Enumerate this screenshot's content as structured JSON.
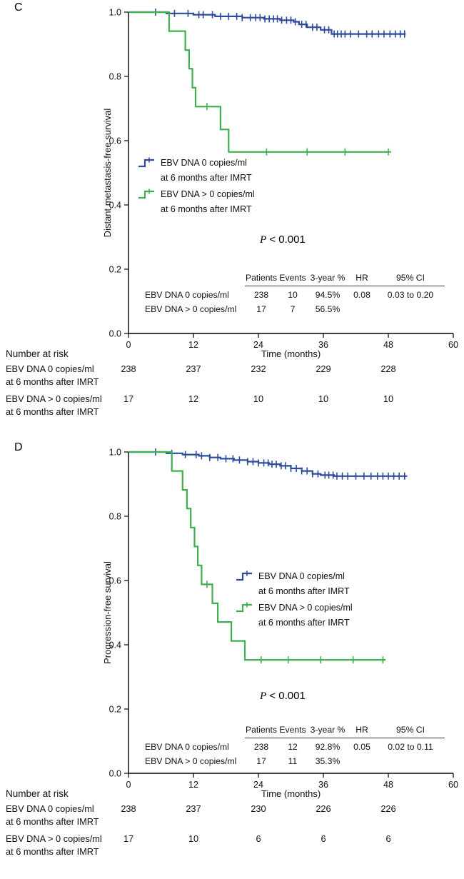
{
  "figure": {
    "panels": [
      {
        "letter": "C",
        "legend": {
          "group1_line1": "EBV DNA 0 copies/ml",
          "group1_line2": "at 6 months after IMRT",
          "group2_line1": "EBV DNA > 0 copies/ml",
          "group2_line2": "at 6 months after IMRT"
        },
        "stats": {
          "headers": {
            "patients": "Patients",
            "events": "Events",
            "three_year": "3-year %",
            "hr": "HR",
            "ci": "95% CI"
          },
          "rows": [
            {
              "label": "EBV DNA 0 copies/ml",
              "patients": "238",
              "events": "10",
              "three_year": "94.5%",
              "hr": "0.08",
              "ci": "0.03 to 0.20"
            },
            {
              "label": "EBV DNA > 0 copies/ml",
              "patients": "17",
              "events": "7",
              "three_year": "56.5%",
              "hr": "",
              "ci": ""
            }
          ]
        },
        "risk": {
          "title": "Number at risk",
          "rows": [
            {
              "label1": "EBV DNA 0 copies/ml",
              "label2": "at 6 months after IMRT"
            },
            {
              "label1": "EBV DNA > 0 copies/ml",
              "label2": "at 6 months after IMRT"
            }
          ]
        }
      },
      {
        "letter": "D",
        "legend": {
          "group1_line1": "EBV DNA 0 copies/ml",
          "group1_line2": "at 6 months after IMRT",
          "group2_line1": "EBV DNA > 0 copies/ml",
          "group2_line2": "at 6 months after IMRT"
        },
        "stats": {
          "headers": {
            "patients": "Patients",
            "events": "Events",
            "three_year": "3-year %",
            "hr": "HR",
            "ci": "95% CI"
          },
          "rows": [
            {
              "label": "EBV DNA 0 copies/ml",
              "patients": "238",
              "events": "12",
              "three_year": "92.8%",
              "hr": "0.05",
              "ci": "0.02 to 0.11"
            },
            {
              "label": "EBV DNA > 0 copies/ml",
              "patients": "17",
              "events": "11",
              "three_year": "35.3%",
              "hr": "",
              "ci": ""
            }
          ]
        },
        "risk": {
          "title": "Number at risk",
          "rows": [
            {
              "label1": "EBV DNA 0 copies/ml",
              "label2": "at 6 months after IMRT"
            },
            {
              "label1": "EBV DNA > 0 copies/ml",
              "label2": "at 6 months after IMRT"
            }
          ]
        }
      }
    ]
  },
  "chart_data": [
    {
      "type": "line",
      "subtype": "kaplan_meier_step",
      "panel": "C",
      "title": "",
      "xlabel": "Time (months)",
      "ylabel": "Distant metastasis-free survival",
      "pvalue": "P < 0.001",
      "xlim": [
        0,
        60
      ],
      "ylim": [
        0,
        1
      ],
      "xticks": [
        0,
        12,
        24,
        36,
        48,
        60
      ],
      "yticks": [
        0,
        0.2,
        0.4,
        0.6,
        0.8,
        1.0
      ],
      "grid": false,
      "legend_position": "inside-left",
      "series": [
        {
          "name": "EBV DNA 0 copies/ml at 6 months after IMRT",
          "color": "#2d4b9c",
          "patients": 238,
          "events": 10,
          "three_year_pct": 94.5,
          "hr": 0.08,
          "ci95": "0.03 to 0.20",
          "steps": [
            [
              0,
              1.0
            ],
            [
              7,
              0.996
            ],
            [
              12,
              0.992
            ],
            [
              16,
              0.987
            ],
            [
              21,
              0.983
            ],
            [
              25,
              0.979
            ],
            [
              28,
              0.975
            ],
            [
              30.5,
              0.97
            ],
            [
              31.5,
              0.962
            ],
            [
              33,
              0.953
            ],
            [
              35.5,
              0.945
            ],
            [
              37.5,
              0.932
            ],
            [
              51.2,
              0.932
            ]
          ],
          "censor_times": [
            5,
            8.5,
            11,
            13,
            13.8,
            15.5,
            17,
            18.5,
            20,
            21,
            22.5,
            23.5,
            24.3,
            25.2,
            26,
            26.8,
            27.5,
            28.3,
            29.2,
            30,
            30.8,
            32,
            32.8,
            34,
            34.8,
            36.2,
            37,
            38,
            38.6,
            39.3,
            40,
            41,
            42.5,
            44,
            45,
            46.2,
            47.2,
            48.3,
            49.3,
            50.2,
            51
          ]
        },
        {
          "name": "EBV DNA > 0 copies/ml at 6 months after IMRT",
          "color": "#3fae4e",
          "patients": 17,
          "events": 7,
          "three_year_pct": 56.5,
          "hr": null,
          "ci95": "",
          "steps": [
            [
              0,
              1.0
            ],
            [
              7.5,
              0.941
            ],
            [
              10.5,
              0.882
            ],
            [
              11.2,
              0.824
            ],
            [
              11.8,
              0.765
            ],
            [
              12.4,
              0.706
            ],
            [
              17,
              0.635
            ],
            [
              18.5,
              0.565
            ],
            [
              48.5,
              0.565
            ]
          ],
          "censor_times": [
            14.5,
            25.5,
            33,
            40,
            48
          ]
        }
      ],
      "number_at_risk": {
        "times": [
          0,
          12,
          24,
          36,
          48
        ],
        "rows": [
          {
            "name": "EBV DNA 0 copies/ml at 6 months after IMRT",
            "counts": [
              238,
              237,
              232,
              229,
              228
            ]
          },
          {
            "name": "EBV DNA > 0 copies/ml at 6 months after IMRT",
            "counts": [
              17,
              12,
              10,
              10,
              10
            ]
          }
        ]
      }
    },
    {
      "type": "line",
      "subtype": "kaplan_meier_step",
      "panel": "D",
      "title": "",
      "xlabel": "Time (months)",
      "ylabel": "Progression-free survival",
      "pvalue": "P < 0.001",
      "xlim": [
        0,
        60
      ],
      "ylim": [
        0,
        1
      ],
      "xticks": [
        0,
        12,
        24,
        36,
        48,
        60
      ],
      "yticks": [
        0,
        0.2,
        0.4,
        0.6,
        0.8,
        1.0
      ],
      "grid": false,
      "legend_position": "inside-center",
      "series": [
        {
          "name": "EBV DNA 0 copies/ml at 6 months after IMRT",
          "color": "#2d4b9c",
          "patients": 238,
          "events": 12,
          "three_year_pct": 92.8,
          "hr": 0.05,
          "ci95": "0.02 to 0.11",
          "steps": [
            [
              0,
              1.0
            ],
            [
              7,
              0.996
            ],
            [
              10,
              0.992
            ],
            [
              13,
              0.988
            ],
            [
              15,
              0.983
            ],
            [
              17,
              0.979
            ],
            [
              19.5,
              0.975
            ],
            [
              22,
              0.97
            ],
            [
              24,
              0.966
            ],
            [
              26,
              0.962
            ],
            [
              28,
              0.957
            ],
            [
              30,
              0.949
            ],
            [
              32,
              0.941
            ],
            [
              34,
              0.932
            ],
            [
              35.5,
              0.928
            ],
            [
              38,
              0.925
            ],
            [
              51.5,
              0.925
            ]
          ],
          "censor_times": [
            5,
            8,
            10.5,
            12.5,
            13.5,
            15,
            16.5,
            18,
            19.3,
            20.5,
            22,
            23,
            24,
            25,
            25.8,
            26.5,
            27.3,
            28.2,
            29,
            30,
            31,
            32,
            33,
            34,
            35,
            36.3,
            37,
            37.8,
            38.5,
            39.5,
            40.5,
            42,
            43.5,
            44.8,
            46,
            47,
            48,
            49,
            50,
            51
          ]
        },
        {
          "name": "EBV DNA > 0 copies/ml at 6 months after IMRT",
          "color": "#3fae4e",
          "patients": 17,
          "events": 11,
          "three_year_pct": 35.3,
          "hr": null,
          "ci95": "",
          "steps": [
            [
              0,
              1.0
            ],
            [
              8,
              0.941
            ],
            [
              10,
              0.882
            ],
            [
              10.8,
              0.824
            ],
            [
              11.5,
              0.765
            ],
            [
              12.2,
              0.706
            ],
            [
              12.8,
              0.647
            ],
            [
              13.5,
              0.588
            ],
            [
              15.5,
              0.529
            ],
            [
              16.5,
              0.471
            ],
            [
              19,
              0.412
            ],
            [
              21.5,
              0.353
            ],
            [
              47.5,
              0.353
            ]
          ],
          "censor_times": [
            14.5,
            24.5,
            29.5,
            35.5,
            41.5,
            47
          ]
        }
      ],
      "number_at_risk": {
        "times": [
          0,
          12,
          24,
          36,
          48
        ],
        "rows": [
          {
            "name": "EBV DNA 0 copies/ml at 6 months after IMRT",
            "counts": [
              238,
              237,
              230,
              226,
              226
            ]
          },
          {
            "name": "EBV DNA > 0 copies/ml at 6 months after IMRT",
            "counts": [
              17,
              10,
              6,
              6,
              6
            ]
          }
        ]
      }
    }
  ]
}
